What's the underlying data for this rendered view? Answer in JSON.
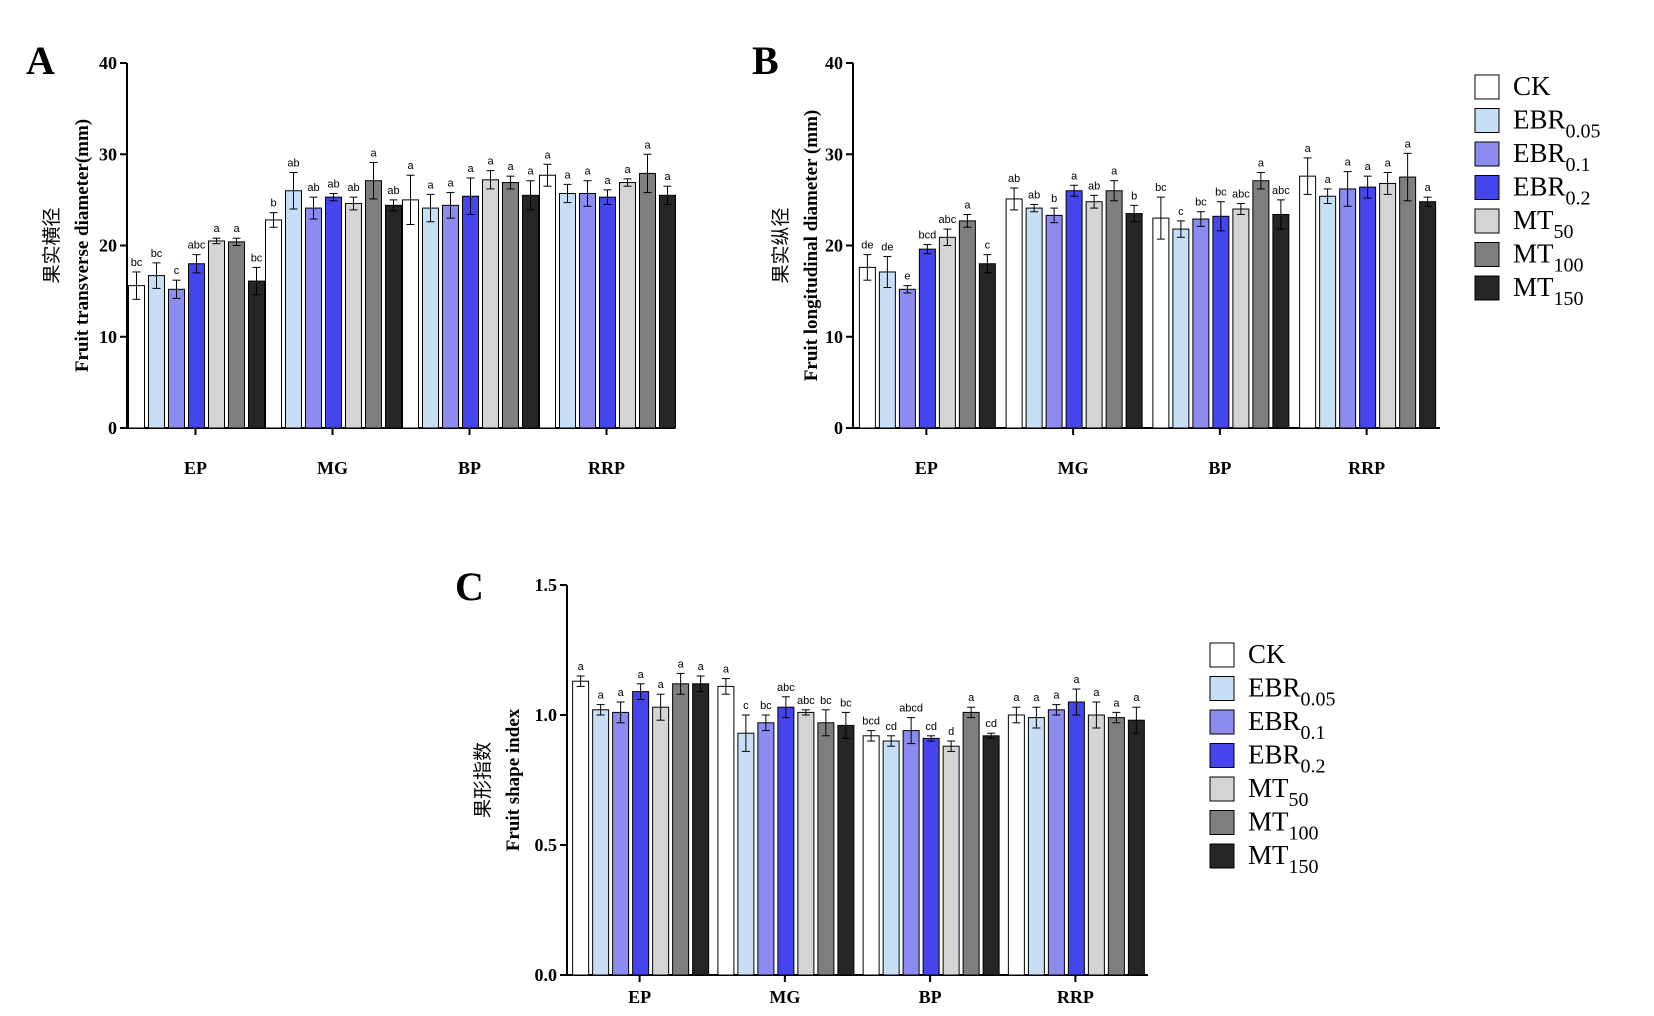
{
  "chart_data": [
    {
      "panel_label": "A",
      "type": "bar",
      "ylabel_cn": "果实横径",
      "ylabel": "Fruit transverse diameter(mm)",
      "ylim": [
        0,
        40
      ],
      "yticks": [
        0,
        10,
        20,
        30,
        40
      ],
      "categories": [
        "EP",
        "MG",
        "BP",
        "RRP"
      ],
      "series": [
        {
          "name": "CK",
          "values": [
            15.6,
            22.8,
            25.0,
            27.7
          ],
          "errors": [
            1.5,
            0.8,
            2.7,
            1.2
          ],
          "letters": [
            "bc",
            "b",
            "a",
            "a"
          ]
        },
        {
          "name": "EBR0.05",
          "values": [
            16.7,
            26.0,
            24.1,
            25.7
          ],
          "errors": [
            1.4,
            2.0,
            1.5,
            1.0
          ],
          "letters": [
            "bc",
            "ab",
            "a",
            "a"
          ]
        },
        {
          "name": "EBR0.1",
          "values": [
            15.2,
            24.1,
            24.4,
            25.7
          ],
          "errors": [
            1.0,
            1.2,
            1.4,
            1.4
          ],
          "letters": [
            "c",
            "ab",
            "a",
            "a"
          ]
        },
        {
          "name": "EBR0.2",
          "values": [
            18.0,
            25.3,
            25.4,
            25.3
          ],
          "errors": [
            1.0,
            0.4,
            2.0,
            0.8
          ],
          "letters": [
            "abc",
            "ab",
            "a",
            "a"
          ]
        },
        {
          "name": "MT50",
          "values": [
            20.5,
            24.6,
            27.2,
            26.9
          ],
          "errors": [
            0.3,
            0.7,
            1.0,
            0.4
          ],
          "letters": [
            "a",
            "ab",
            "a",
            "a"
          ]
        },
        {
          "name": "MT100",
          "values": [
            20.4,
            27.1,
            26.9,
            27.9
          ],
          "errors": [
            0.4,
            2.0,
            0.7,
            2.1
          ],
          "letters": [
            "a",
            "a",
            "a",
            "a"
          ]
        },
        {
          "name": "MT150",
          "values": [
            16.1,
            24.4,
            25.5,
            25.5
          ],
          "errors": [
            1.5,
            0.6,
            1.6,
            1.0
          ],
          "letters": [
            "bc",
            "ab",
            "a",
            "a"
          ]
        }
      ]
    },
    {
      "panel_label": "B",
      "type": "bar",
      "ylabel_cn": "果实纵径",
      "ylabel": "Fruit longitudinal diameter (mm)",
      "ylim": [
        0,
        40
      ],
      "yticks": [
        0,
        10,
        20,
        30,
        40
      ],
      "categories": [
        "EP",
        "MG",
        "BP",
        "RRP"
      ],
      "series": [
        {
          "name": "CK",
          "values": [
            17.6,
            25.1,
            23.0,
            27.6
          ],
          "errors": [
            1.4,
            1.2,
            2.3,
            2.0
          ],
          "letters": [
            "de",
            "ab",
            "bc",
            "a"
          ]
        },
        {
          "name": "EBR0.05",
          "values": [
            17.1,
            24.1,
            21.8,
            25.4
          ],
          "errors": [
            1.7,
            0.4,
            0.9,
            0.8
          ],
          "letters": [
            "de",
            "ab",
            "c",
            "a"
          ]
        },
        {
          "name": "EBR0.1",
          "values": [
            15.2,
            23.3,
            22.9,
            26.2
          ],
          "errors": [
            0.4,
            0.8,
            0.8,
            1.9
          ],
          "letters": [
            "e",
            "b",
            "bc",
            "a"
          ]
        },
        {
          "name": "EBR0.2",
          "values": [
            19.6,
            26.0,
            23.2,
            26.4
          ],
          "errors": [
            0.5,
            0.6,
            1.6,
            1.2
          ],
          "letters": [
            "bcd",
            "a",
            "bc",
            "a"
          ]
        },
        {
          "name": "MT50",
          "values": [
            20.9,
            24.8,
            24.0,
            26.8
          ],
          "errors": [
            0.9,
            0.7,
            0.6,
            1.2
          ],
          "letters": [
            "abc",
            "ab",
            "abc",
            "a"
          ]
        },
        {
          "name": "MT100",
          "values": [
            22.7,
            26.0,
            27.1,
            27.5
          ],
          "errors": [
            0.7,
            1.1,
            0.9,
            2.6
          ],
          "letters": [
            "a",
            "a",
            "a",
            "a"
          ]
        },
        {
          "name": "MT150",
          "values": [
            18.0,
            23.5,
            23.4,
            24.8
          ],
          "errors": [
            1.0,
            0.9,
            1.6,
            0.5
          ],
          "letters": [
            "c",
            "b",
            "abc",
            "a"
          ]
        }
      ]
    },
    {
      "panel_label": "C",
      "type": "bar",
      "ylabel_cn": "果形指数",
      "ylabel": "Fruit shape index",
      "ylim": [
        0,
        1.5
      ],
      "yticks": [
        0.0,
        0.5,
        1.0,
        1.5
      ],
      "categories": [
        "EP",
        "MG",
        "BP",
        "RRP"
      ],
      "series": [
        {
          "name": "CK",
          "values": [
            1.13,
            1.11,
            0.92,
            1.0
          ],
          "errors": [
            0.02,
            0.03,
            0.02,
            0.03
          ],
          "letters": [
            "a",
            "a",
            "bcd",
            "a"
          ]
        },
        {
          "name": "EBR0.05",
          "values": [
            1.02,
            0.93,
            0.9,
            0.99
          ],
          "errors": [
            0.02,
            0.07,
            0.02,
            0.04
          ],
          "letters": [
            "a",
            "c",
            "cd",
            "a"
          ]
        },
        {
          "name": "EBR0.1",
          "values": [
            1.01,
            0.97,
            0.94,
            1.02
          ],
          "errors": [
            0.04,
            0.03,
            0.05,
            0.02
          ],
          "letters": [
            "a",
            "bc",
            "abcd",
            "a"
          ]
        },
        {
          "name": "EBR0.2",
          "values": [
            1.09,
            1.03,
            0.91,
            1.05
          ],
          "errors": [
            0.03,
            0.04,
            0.01,
            0.05
          ],
          "letters": [
            "a",
            "abc",
            "cd",
            "a"
          ]
        },
        {
          "name": "MT50",
          "values": [
            1.03,
            1.01,
            0.88,
            1.0
          ],
          "errors": [
            0.05,
            0.01,
            0.02,
            0.05
          ],
          "letters": [
            "a",
            "abc",
            "d",
            "a"
          ]
        },
        {
          "name": "MT100",
          "values": [
            1.12,
            0.97,
            1.01,
            0.99
          ],
          "errors": [
            0.04,
            0.05,
            0.02,
            0.02
          ],
          "letters": [
            "a",
            "bc",
            "a",
            "a"
          ]
        },
        {
          "name": "MT150",
          "values": [
            1.12,
            0.96,
            0.92,
            0.98
          ],
          "errors": [
            0.03,
            0.05,
            0.01,
            0.05
          ],
          "letters": [
            "a",
            "bc",
            "cd",
            "a"
          ]
        }
      ]
    }
  ],
  "legend": [
    {
      "base": "CK",
      "sub": ""
    },
    {
      "base": "EBR",
      "sub": "0.05"
    },
    {
      "base": "EBR",
      "sub": "0.1"
    },
    {
      "base": "EBR",
      "sub": "0.2"
    },
    {
      "base": "MT",
      "sub": "50"
    },
    {
      "base": "MT",
      "sub": "100"
    },
    {
      "base": "MT",
      "sub": "150"
    }
  ],
  "colors": [
    "#ffffff",
    "#c6dff5",
    "#8c8cf0",
    "#4545ee",
    "#d4d4d4",
    "#7f7f7f",
    "#262626"
  ]
}
